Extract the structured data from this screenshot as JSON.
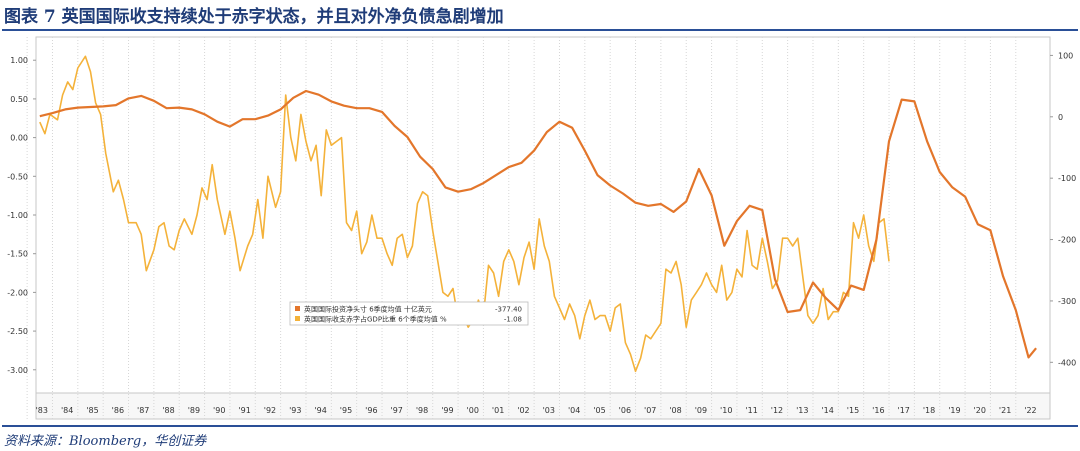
{
  "figure": {
    "title": "图表 7  英国国际收支持续处于赤字状态，并且对外净负债急剧增加",
    "source": "资料来源：Bloomberg，华创证券"
  },
  "colors": {
    "line_net_investment": "#e3762b",
    "line_current_account": "#f4b23a",
    "rule": "#2a4f97",
    "title_text": "#1f3c78",
    "plot_border": "#c7c7c7"
  },
  "chart_data": {
    "type": "line",
    "x": [
      "'83",
      "'84",
      "'85",
      "'86",
      "'87",
      "'88",
      "'89",
      "'90",
      "'91",
      "'92",
      "'93",
      "'94",
      "'95",
      "'96",
      "'97",
      "'98",
      "'99",
      "'00",
      "'01",
      "'02",
      "'03",
      "'04",
      "'05",
      "'06",
      "'07",
      "'08",
      "'09",
      "'10",
      "'11",
      "'12",
      "'13",
      "'14",
      "'15",
      "'16",
      "'17",
      "'18",
      "'19",
      "'20",
      "'21",
      "'22"
    ],
    "left_axis": {
      "ticks": [
        "1.00",
        "0.50",
        "0.00",
        "-0.50",
        "-1.00",
        "-1.50",
        "-2.00",
        "-2.50",
        "-3.00"
      ],
      "range": [
        -3.3,
        1.3
      ]
    },
    "right_axis": {
      "ticks": [
        "100",
        "0",
        "-100",
        "-200",
        "-300",
        "-400"
      ],
      "range": [
        -450,
        130
      ]
    },
    "grid": "vertical dotted",
    "legend_placement": "center",
    "series": [
      {
        "name": "英国国际投资净头寸 6季度均值 十亿英元",
        "axis": "right",
        "last_value": "-377.40",
        "points": [
          [
            1983,
            1
          ],
          [
            1983.5,
            6
          ],
          [
            1984,
            12
          ],
          [
            1984.5,
            15
          ],
          [
            1985,
            16
          ],
          [
            1985.5,
            17
          ],
          [
            1986,
            19
          ],
          [
            1986.5,
            30
          ],
          [
            1987,
            34
          ],
          [
            1987.5,
            26
          ],
          [
            1988,
            14
          ],
          [
            1988.5,
            15
          ],
          [
            1989,
            12
          ],
          [
            1989.5,
            4
          ],
          [
            1990,
            -8
          ],
          [
            1990.5,
            -16
          ],
          [
            1991,
            -4
          ],
          [
            1991.5,
            -4
          ],
          [
            1992,
            2
          ],
          [
            1992.5,
            12
          ],
          [
            1993,
            31
          ],
          [
            1993.5,
            42
          ],
          [
            1994,
            36
          ],
          [
            1994.5,
            25
          ],
          [
            1995,
            18
          ],
          [
            1995.5,
            14
          ],
          [
            1996,
            14
          ],
          [
            1996.5,
            8
          ],
          [
            1997,
            -15
          ],
          [
            1997.5,
            -33
          ],
          [
            1998,
            -65
          ],
          [
            1998.5,
            -85
          ],
          [
            1999,
            -115
          ],
          [
            1999.5,
            -122
          ],
          [
            2000,
            -118
          ],
          [
            2000.5,
            -108
          ],
          [
            2001,
            -95
          ],
          [
            2001.5,
            -82
          ],
          [
            2002,
            -75
          ],
          [
            2002.5,
            -55
          ],
          [
            2003,
            -25
          ],
          [
            2003.5,
            -8
          ],
          [
            2004,
            -18
          ],
          [
            2004.5,
            -55
          ],
          [
            2005,
            -95
          ],
          [
            2005.5,
            -112
          ],
          [
            2006,
            -125
          ],
          [
            2006.5,
            -140
          ],
          [
            2007,
            -145
          ],
          [
            2007.5,
            -142
          ],
          [
            2008,
            -155
          ],
          [
            2008.5,
            -138
          ],
          [
            2009,
            -85
          ],
          [
            2009.5,
            -128
          ],
          [
            2010,
            -210
          ],
          [
            2010.5,
            -170
          ],
          [
            2011,
            -145
          ],
          [
            2011.5,
            -152
          ],
          [
            2012,
            -265
          ],
          [
            2012.5,
            -318
          ],
          [
            2013,
            -315
          ],
          [
            2013.5,
            -270
          ],
          [
            2014,
            -295
          ],
          [
            2014.5,
            -315
          ],
          [
            2015,
            -275
          ],
          [
            2015.5,
            -282
          ],
          [
            2016,
            -200
          ],
          [
            2016.5,
            -40
          ],
          [
            2017,
            28
          ],
          [
            2017.5,
            25
          ],
          [
            2018,
            -40
          ],
          [
            2018.5,
            -90
          ],
          [
            2019,
            -115
          ],
          [
            2019.5,
            -130
          ],
          [
            2020,
            -175
          ],
          [
            2020.5,
            -185
          ],
          [
            2021,
            -260
          ],
          [
            2021.5,
            -315
          ],
          [
            2022,
            -392
          ],
          [
            2022.3,
            -377
          ]
        ]
      },
      {
        "name": "英国国际收支赤字占GDP比重 6个季度均值 %",
        "axis": "left",
        "last_value": "-1.08",
        "points": [
          [
            1983,
            0.2
          ],
          [
            1983.2,
            0.05
          ],
          [
            1983.4,
            0.3
          ],
          [
            1983.7,
            0.23
          ],
          [
            1983.9,
            0.55
          ],
          [
            1984.1,
            0.72
          ],
          [
            1984.3,
            0.62
          ],
          [
            1984.5,
            0.9
          ],
          [
            1984.8,
            1.05
          ],
          [
            1985,
            0.85
          ],
          [
            1985.2,
            0.45
          ],
          [
            1985.4,
            0.3
          ],
          [
            1985.6,
            -0.2
          ],
          [
            1985.9,
            -0.7
          ],
          [
            1986.1,
            -0.55
          ],
          [
            1986.3,
            -0.8
          ],
          [
            1986.5,
            -1.1
          ],
          [
            1986.8,
            -1.1
          ],
          [
            1987,
            -1.25
          ],
          [
            1987.2,
            -1.72
          ],
          [
            1987.5,
            -1.45
          ],
          [
            1987.7,
            -1.15
          ],
          [
            1987.9,
            -1.1
          ],
          [
            1988.1,
            -1.4
          ],
          [
            1988.3,
            -1.45
          ],
          [
            1988.5,
            -1.2
          ],
          [
            1988.7,
            -1.05
          ],
          [
            1989,
            -1.25
          ],
          [
            1989.2,
            -1.0
          ],
          [
            1989.4,
            -0.65
          ],
          [
            1989.6,
            -0.8
          ],
          [
            1989.8,
            -0.35
          ],
          [
            1990,
            -0.8
          ],
          [
            1990.3,
            -1.25
          ],
          [
            1990.5,
            -0.95
          ],
          [
            1990.7,
            -1.3
          ],
          [
            1990.9,
            -1.72
          ],
          [
            1991.2,
            -1.4
          ],
          [
            1991.4,
            -1.25
          ],
          [
            1991.6,
            -0.8
          ],
          [
            1991.8,
            -1.3
          ],
          [
            1992,
            -0.5
          ],
          [
            1992.3,
            -0.9
          ],
          [
            1992.5,
            -0.7
          ],
          [
            1992.7,
            0.55
          ],
          [
            1992.9,
            0.0
          ],
          [
            1993.1,
            -0.3
          ],
          [
            1993.3,
            0.3
          ],
          [
            1993.5,
            -0.05
          ],
          [
            1993.7,
            -0.3
          ],
          [
            1993.9,
            -0.1
          ],
          [
            1994.1,
            -0.75
          ],
          [
            1994.3,
            0.1
          ],
          [
            1994.5,
            -0.1
          ],
          [
            1994.7,
            -0.05
          ],
          [
            1994.9,
            0.0
          ],
          [
            1995.1,
            -1.1
          ],
          [
            1995.3,
            -1.2
          ],
          [
            1995.5,
            -0.95
          ],
          [
            1995.7,
            -1.5
          ],
          [
            1995.9,
            -1.35
          ],
          [
            1996.1,
            -1.0
          ],
          [
            1996.3,
            -1.3
          ],
          [
            1996.5,
            -1.3
          ],
          [
            1996.7,
            -1.5
          ],
          [
            1996.9,
            -1.65
          ],
          [
            1997.1,
            -1.3
          ],
          [
            1997.3,
            -1.25
          ],
          [
            1997.5,
            -1.55
          ],
          [
            1997.7,
            -1.4
          ],
          [
            1997.9,
            -0.85
          ],
          [
            1998.1,
            -0.7
          ],
          [
            1998.3,
            -0.75
          ],
          [
            1998.5,
            -1.2
          ],
          [
            1998.7,
            -1.6
          ],
          [
            1998.9,
            -2.0
          ],
          [
            1999.1,
            -2.05
          ],
          [
            1999.3,
            -1.95
          ],
          [
            1999.5,
            -2.35
          ],
          [
            1999.7,
            -2.3
          ],
          [
            1999.9,
            -2.45
          ],
          [
            2000.1,
            -2.35
          ],
          [
            2000.3,
            -2.1
          ],
          [
            2000.5,
            -2.3
          ],
          [
            2000.7,
            -1.65
          ],
          [
            2000.9,
            -1.75
          ],
          [
            2001.1,
            -2.05
          ],
          [
            2001.3,
            -1.6
          ],
          [
            2001.5,
            -1.45
          ],
          [
            2001.7,
            -1.6
          ],
          [
            2001.9,
            -1.9
          ],
          [
            2002.1,
            -1.55
          ],
          [
            2002.3,
            -1.35
          ],
          [
            2002.5,
            -1.7
          ],
          [
            2002.7,
            -1.05
          ],
          [
            2002.9,
            -1.4
          ],
          [
            2003.1,
            -1.6
          ],
          [
            2003.3,
            -2.05
          ],
          [
            2003.5,
            -2.2
          ],
          [
            2003.7,
            -2.35
          ],
          [
            2003.9,
            -2.15
          ],
          [
            2004.1,
            -2.3
          ],
          [
            2004.3,
            -2.6
          ],
          [
            2004.5,
            -2.3
          ],
          [
            2004.7,
            -2.1
          ],
          [
            2004.9,
            -2.35
          ],
          [
            2005.1,
            -2.3
          ],
          [
            2005.3,
            -2.3
          ],
          [
            2005.5,
            -2.5
          ],
          [
            2005.7,
            -2.2
          ],
          [
            2005.9,
            -2.15
          ],
          [
            2006.1,
            -2.65
          ],
          [
            2006.3,
            -2.8
          ],
          [
            2006.5,
            -3.02
          ],
          [
            2006.7,
            -2.85
          ],
          [
            2006.9,
            -2.55
          ],
          [
            2007.1,
            -2.6
          ],
          [
            2007.3,
            -2.5
          ],
          [
            2007.5,
            -2.4
          ],
          [
            2007.7,
            -1.7
          ],
          [
            2007.9,
            -1.75
          ],
          [
            2008.1,
            -1.6
          ],
          [
            2008.3,
            -1.9
          ],
          [
            2008.5,
            -2.45
          ],
          [
            2008.7,
            -2.1
          ],
          [
            2008.9,
            -2.0
          ],
          [
            2009.1,
            -1.9
          ],
          [
            2009.3,
            -1.75
          ],
          [
            2009.5,
            -1.9
          ],
          [
            2009.7,
            -2.0
          ],
          [
            2009.9,
            -1.65
          ],
          [
            2010.1,
            -2.1
          ],
          [
            2010.3,
            -2.0
          ],
          [
            2010.5,
            -1.7
          ],
          [
            2010.7,
            -1.8
          ],
          [
            2010.9,
            -1.2
          ],
          [
            2011.1,
            -1.65
          ],
          [
            2011.3,
            -1.7
          ],
          [
            2011.5,
            -1.3
          ],
          [
            2011.7,
            -1.6
          ],
          [
            2011.9,
            -1.95
          ],
          [
            2012.1,
            -1.85
          ],
          [
            2012.3,
            -1.3
          ],
          [
            2012.5,
            -1.3
          ],
          [
            2012.7,
            -1.4
          ],
          [
            2012.9,
            -1.3
          ],
          [
            2013.1,
            -1.8
          ],
          [
            2013.3,
            -2.3
          ],
          [
            2013.5,
            -2.4
          ],
          [
            2013.7,
            -2.3
          ],
          [
            2013.9,
            -1.95
          ],
          [
            2014.1,
            -2.35
          ],
          [
            2014.3,
            -2.25
          ],
          [
            2014.5,
            -2.25
          ],
          [
            2014.7,
            -2.0
          ],
          [
            2014.9,
            -2.05
          ],
          [
            2015.1,
            -1.1
          ],
          [
            2015.3,
            -1.3
          ],
          [
            2015.5,
            -1.0
          ],
          [
            2015.7,
            -1.4
          ],
          [
            2015.9,
            -1.6
          ],
          [
            2016.1,
            -1.1
          ],
          [
            2016.3,
            -1.05
          ],
          [
            2016.5,
            -1.6
          ]
        ]
      }
    ]
  }
}
